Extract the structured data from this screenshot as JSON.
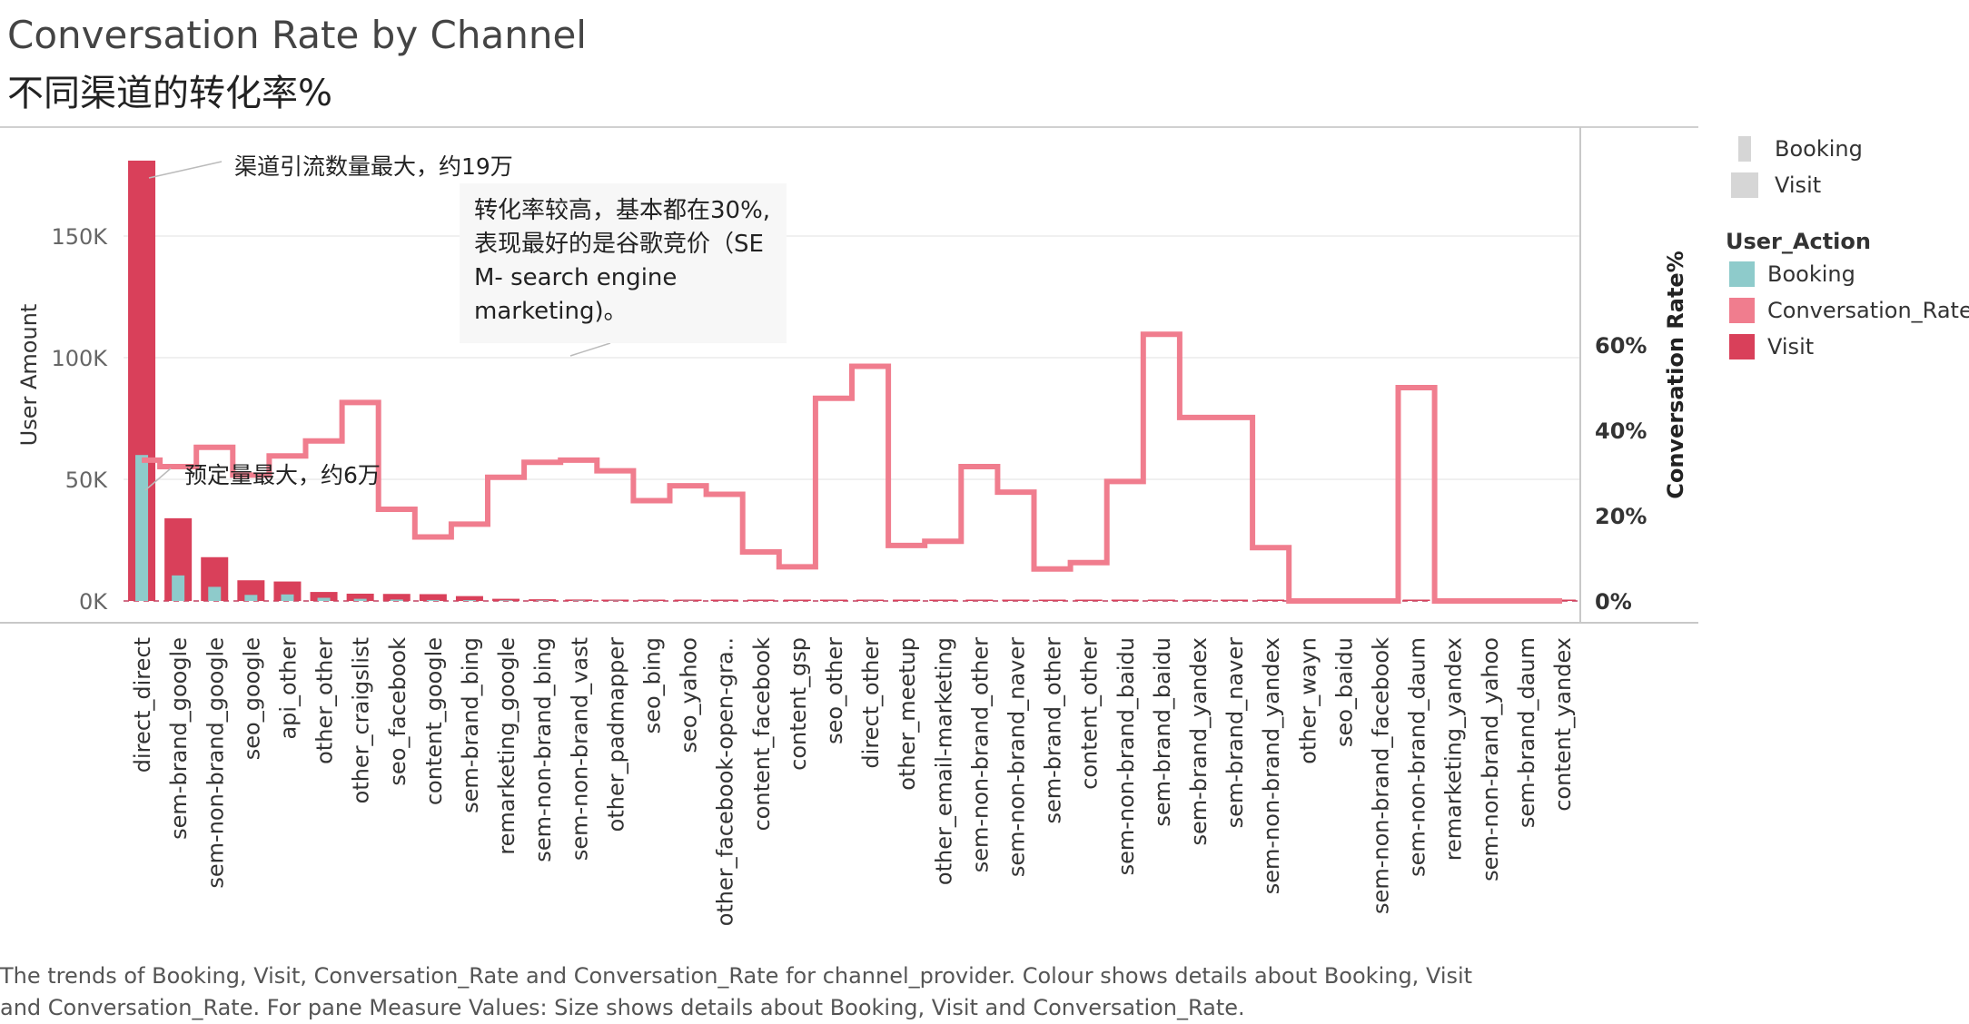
{
  "title": "Conversation Rate by Channel",
  "subtitle": "不同渠道的转化率%",
  "caption": "The trends of Booking, Visit, Conversation_Rate and Conversation_Rate for channel_provider.  Colour shows details about Booking, Visit and Conversation_Rate.  For pane Measure Values:  Size shows details about Booking, Visit and Conversation_Rate.",
  "size_legend": {
    "items": [
      "Booking",
      "Visit"
    ]
  },
  "color_legend": {
    "title": "User_Action",
    "items": [
      {
        "label": "Booking",
        "color": "#8ecbcb"
      },
      {
        "label": "Conversation_Rate",
        "color": "#f07d8e"
      },
      {
        "label": "Visit",
        "color": "#d9405a"
      }
    ]
  },
  "annotations": {
    "max_visit": "渠道引流数量最大，约19万",
    "max_booking": "预定量最大，约6万",
    "high_conversion": [
      "转化率较高，基本都在30%,",
      "表现最好的是谷歌竞价（SE",
      "M- search engine",
      "marketing)。"
    ]
  },
  "chart_data": {
    "type": "bar",
    "ylabel": "User Amount",
    "y2label": "Conversation Rate%",
    "ylim": [
      0,
      185000
    ],
    "y2lim": [
      0,
      0.63
    ],
    "yticks": [
      "150K",
      "100K",
      "50K",
      "0K"
    ],
    "ytick_values": [
      150000,
      100000,
      50000,
      0
    ],
    "y2ticks": [
      "60%",
      "40%",
      "20%",
      "0%"
    ],
    "y2tick_values": [
      0.6,
      0.4,
      0.2,
      0
    ],
    "categories": [
      "direct_direct",
      "sem-brand_google",
      "sem-non-brand_google",
      "seo_google",
      "api_other",
      "other_other",
      "other_craigslist",
      "seo_facebook",
      "content_google",
      "sem-brand_bing",
      "remarketing_google",
      "sem-non-brand_bing",
      "sem-non-brand_vast",
      "other_padmapper",
      "seo_bing",
      "seo_yahoo",
      "other_facebook-open-gra..",
      "content_facebook",
      "content_gsp",
      "seo_other",
      "direct_other",
      "other_meetup",
      "other_email-marketing",
      "sem-non-brand_other",
      "sem-non-brand_naver",
      "sem-brand_other",
      "content_other",
      "sem-non-brand_baidu",
      "sem-brand_baidu",
      "sem-brand_yandex",
      "sem-brand_naver",
      "sem-non-brand_yandex",
      "other_wayn",
      "seo_baidu",
      "sem-non-brand_facebook",
      "sem-non-brand_daum",
      "remarketing_yandex",
      "sem-non-brand_yahoo",
      "sem-brand_daum",
      "content_yandex"
    ],
    "series": [
      {
        "name": "Visit",
        "color": "#d9405a",
        "values": [
          181000,
          34000,
          18000,
          8500,
          8000,
          3700,
          3000,
          2900,
          2800,
          2000,
          900,
          700,
          600,
          500,
          450,
          400,
          350,
          300,
          280,
          260,
          240,
          220,
          200,
          180,
          160,
          150,
          140,
          130,
          120,
          110,
          100,
          90,
          80,
          70,
          60,
          50,
          40,
          30,
          20,
          10
        ]
      },
      {
        "name": "Booking",
        "color": "#8ecbcb",
        "values": [
          60000,
          10500,
          5800,
          2500,
          2700,
          1300,
          900,
          600,
          400,
          350,
          250,
          200,
          200,
          150,
          100,
          100,
          50,
          40,
          30,
          60,
          100,
          30,
          30,
          50,
          40,
          15,
          20,
          40,
          70,
          55,
          40,
          10,
          0,
          0,
          0,
          25,
          0,
          0,
          0,
          0
        ]
      },
      {
        "name": "Conversation_Rate",
        "color": "#f07d8e",
        "values": [
          0.33,
          0.315,
          0.36,
          0.295,
          0.34,
          0.375,
          0.465,
          0.215,
          0.15,
          0.18,
          0.29,
          0.325,
          0.33,
          0.305,
          0.235,
          0.27,
          0.25,
          0.115,
          0.08,
          0.475,
          0.55,
          0.13,
          0.14,
          0.315,
          0.255,
          0.075,
          0.09,
          0.28,
          0.625,
          0.43,
          0.43,
          0.125,
          0,
          0,
          0,
          0.5,
          0,
          0,
          0,
          0
        ]
      }
    ],
    "grid": "horizontal",
    "legend": "right"
  }
}
